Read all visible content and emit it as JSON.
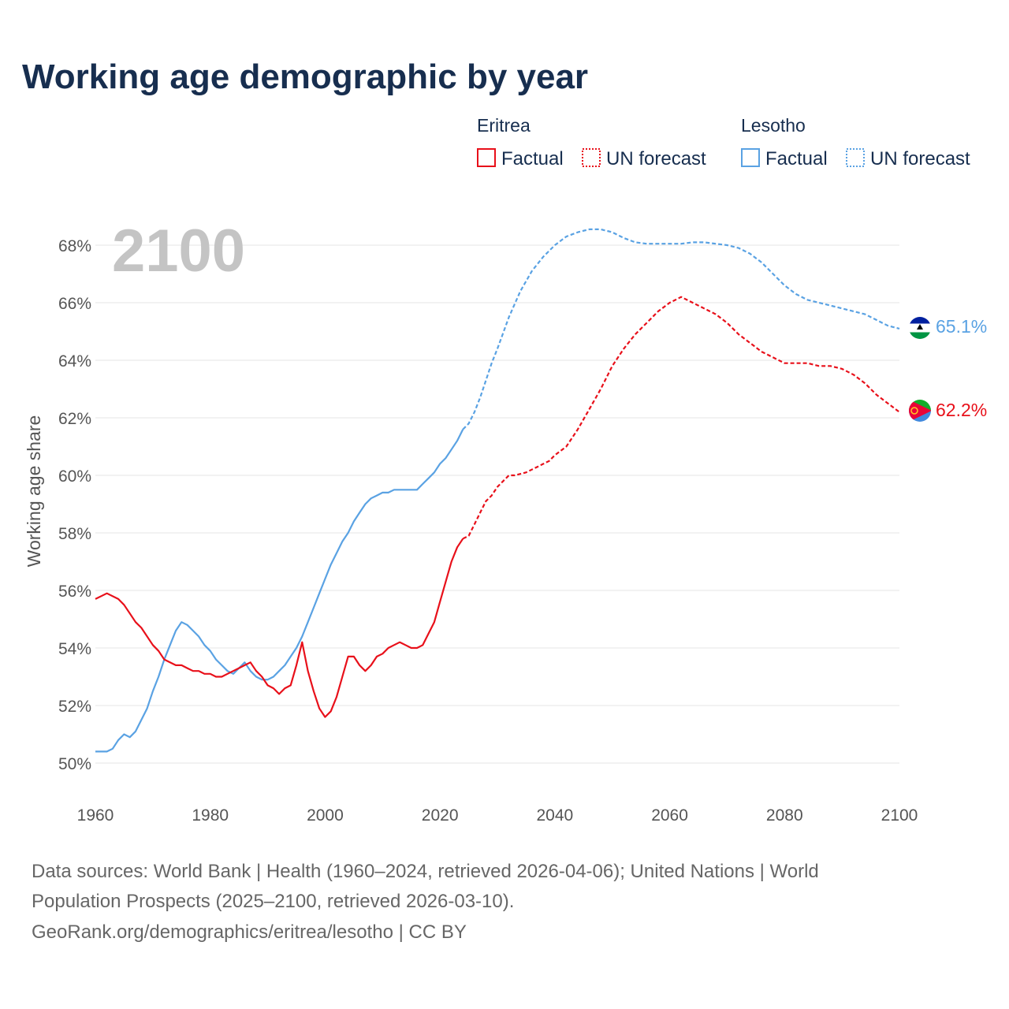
{
  "title": "Working age demographic by year",
  "year_watermark": "2100",
  "legend": {
    "groups": [
      {
        "country": "Eritrea",
        "factual_label": "Factual",
        "forecast_label": "UN forecast",
        "color": "#e8101a"
      },
      {
        "country": "Lesotho",
        "factual_label": "Factual",
        "forecast_label": "UN forecast",
        "color": "#5aa2e3"
      }
    ]
  },
  "footer": {
    "line1": "Data sources: World Bank | Health (1960–2024, retrieved 2026-04-06); United Nations | World",
    "line2": "Population Prospects (2025–2100, retrieved 2026-03-10).",
    "line3": "GeoRank.org/demographics/eritrea/lesotho | CC BY"
  },
  "flags": [
    {
      "country": "Lesotho",
      "icon": "lesotho-flag-icon"
    },
    {
      "country": "Eritrea",
      "icon": "eritrea-flag-icon"
    }
  ],
  "chart_data": {
    "type": "line",
    "title": "Working age demographic by year",
    "xlabel": "",
    "ylabel": "Working age share",
    "xlim": [
      1960,
      2100
    ],
    "ylim": [
      49.5,
      69
    ],
    "x_ticks": [
      1960,
      1980,
      2000,
      2020,
      2040,
      2060,
      2080,
      2100
    ],
    "x_tick_labels": [
      "1960",
      "1980",
      "2000",
      "2020",
      "2040",
      "2060",
      "2080",
      "2100"
    ],
    "y_ticks": [
      50,
      52,
      54,
      56,
      58,
      60,
      62,
      64,
      66,
      68
    ],
    "y_tick_labels": [
      "50%",
      "52%",
      "54%",
      "56%",
      "58%",
      "60%",
      "62%",
      "64%",
      "66%",
      "68%"
    ],
    "grid": true,
    "legend_position": "top-right",
    "series": [
      {
        "name": "Eritrea",
        "color": "#e8101a",
        "end_label": "62.2%",
        "factual": {
          "x": [
            1960,
            1962,
            1964,
            1965,
            1966,
            1967,
            1968,
            1970,
            1971,
            1972,
            1974,
            1975,
            1976,
            1977,
            1978,
            1979,
            1980,
            1981,
            1982,
            1983,
            1984,
            1985,
            1986,
            1987,
            1988,
            1989,
            1990,
            1991,
            1992,
            1993,
            1994,
            1995,
            1996,
            1997,
            1998,
            1999,
            2000,
            2001,
            2002,
            2003,
            2004,
            2005,
            2006,
            2007,
            2008,
            2009,
            2010,
            2011,
            2012,
            2013,
            2014,
            2015,
            2016,
            2017,
            2018,
            2019,
            2020,
            2021,
            2022,
            2023,
            2024
          ],
          "y": [
            55.7,
            55.9,
            55.7,
            55.5,
            55.2,
            54.9,
            54.7,
            54.1,
            53.9,
            53.6,
            53.4,
            53.4,
            53.3,
            53.2,
            53.2,
            53.1,
            53.1,
            53.0,
            53.0,
            53.1,
            53.2,
            53.3,
            53.4,
            53.5,
            53.2,
            53.0,
            52.7,
            52.6,
            52.4,
            52.6,
            52.7,
            53.4,
            54.2,
            53.2,
            52.5,
            51.9,
            51.6,
            51.8,
            52.3,
            53.0,
            53.7,
            53.7,
            53.4,
            53.2,
            53.4,
            53.7,
            53.8,
            54.0,
            54.1,
            54.2,
            54.1,
            54.0,
            54.0,
            54.1,
            54.5,
            54.9,
            55.6,
            56.3,
            57.0,
            57.5,
            57.8
          ]
        },
        "forecast": {
          "x": [
            2024,
            2025,
            2026,
            2027,
            2028,
            2029,
            2030,
            2031,
            2032,
            2033,
            2034,
            2035,
            2036,
            2037,
            2038,
            2039,
            2040,
            2042,
            2044,
            2046,
            2048,
            2050,
            2052,
            2054,
            2056,
            2058,
            2060,
            2061,
            2062,
            2064,
            2066,
            2068,
            2070,
            2072,
            2074,
            2076,
            2078,
            2080,
            2082,
            2084,
            2086,
            2088,
            2090,
            2092,
            2094,
            2096,
            2098,
            2100
          ],
          "y": [
            57.8,
            57.9,
            58.3,
            58.7,
            59.1,
            59.3,
            59.6,
            59.8,
            60.0,
            60.0,
            60.05,
            60.1,
            60.2,
            60.3,
            60.4,
            60.5,
            60.7,
            61.0,
            61.6,
            62.3,
            63.0,
            63.8,
            64.4,
            64.9,
            65.3,
            65.7,
            66.0,
            66.1,
            66.2,
            66.0,
            65.8,
            65.6,
            65.3,
            64.9,
            64.6,
            64.3,
            64.1,
            63.9,
            63.9,
            63.9,
            63.8,
            63.8,
            63.7,
            63.5,
            63.2,
            62.8,
            62.5,
            62.2
          ]
        }
      },
      {
        "name": "Lesotho",
        "color": "#5aa2e3",
        "end_label": "65.1%",
        "factual": {
          "x": [
            1960,
            1962,
            1963,
            1964,
            1965,
            1966,
            1967,
            1968,
            1969,
            1970,
            1971,
            1972,
            1973,
            1974,
            1975,
            1976,
            1977,
            1978,
            1979,
            1980,
            1981,
            1982,
            1983,
            1984,
            1985,
            1986,
            1987,
            1988,
            1989,
            1990,
            1991,
            1992,
            1993,
            1994,
            1995,
            1996,
            1997,
            1998,
            1999,
            2000,
            2001,
            2002,
            2003,
            2004,
            2005,
            2006,
            2007,
            2008,
            2009,
            2010,
            2011,
            2012,
            2013,
            2014,
            2015,
            2016,
            2017,
            2018,
            2019,
            2020,
            2021,
            2022,
            2023,
            2024
          ],
          "y": [
            50.4,
            50.4,
            50.5,
            50.8,
            51.0,
            50.9,
            51.1,
            51.5,
            51.9,
            52.5,
            53.0,
            53.6,
            54.1,
            54.6,
            54.9,
            54.8,
            54.6,
            54.4,
            54.1,
            53.9,
            53.6,
            53.4,
            53.2,
            53.1,
            53.3,
            53.5,
            53.2,
            53.0,
            52.9,
            52.9,
            53.0,
            53.2,
            53.4,
            53.7,
            54.0,
            54.4,
            54.9,
            55.4,
            55.9,
            56.4,
            56.9,
            57.3,
            57.7,
            58.0,
            58.4,
            58.7,
            59.0,
            59.2,
            59.3,
            59.4,
            59.4,
            59.5,
            59.5,
            59.5,
            59.5,
            59.5,
            59.7,
            59.9,
            60.1,
            60.4,
            60.6,
            60.9,
            61.2,
            61.6
          ]
        },
        "forecast": {
          "x": [
            2024,
            2025,
            2026,
            2027,
            2028,
            2029,
            2030,
            2032,
            2034,
            2036,
            2038,
            2040,
            2042,
            2044,
            2046,
            2048,
            2050,
            2052,
            2054,
            2056,
            2058,
            2060,
            2062,
            2064,
            2066,
            2068,
            2070,
            2072,
            2074,
            2076,
            2078,
            2080,
            2082,
            2084,
            2086,
            2088,
            2090,
            2092,
            2094,
            2096,
            2098,
            2100
          ],
          "y": [
            61.6,
            61.8,
            62.2,
            62.7,
            63.3,
            63.9,
            64.4,
            65.5,
            66.4,
            67.1,
            67.6,
            68.0,
            68.3,
            68.45,
            68.55,
            68.55,
            68.45,
            68.25,
            68.1,
            68.05,
            68.05,
            68.05,
            68.05,
            68.1,
            68.1,
            68.05,
            68.0,
            67.9,
            67.7,
            67.4,
            67.0,
            66.6,
            66.3,
            66.1,
            66.0,
            65.9,
            65.8,
            65.7,
            65.6,
            65.4,
            65.2,
            65.1
          ]
        }
      }
    ]
  }
}
